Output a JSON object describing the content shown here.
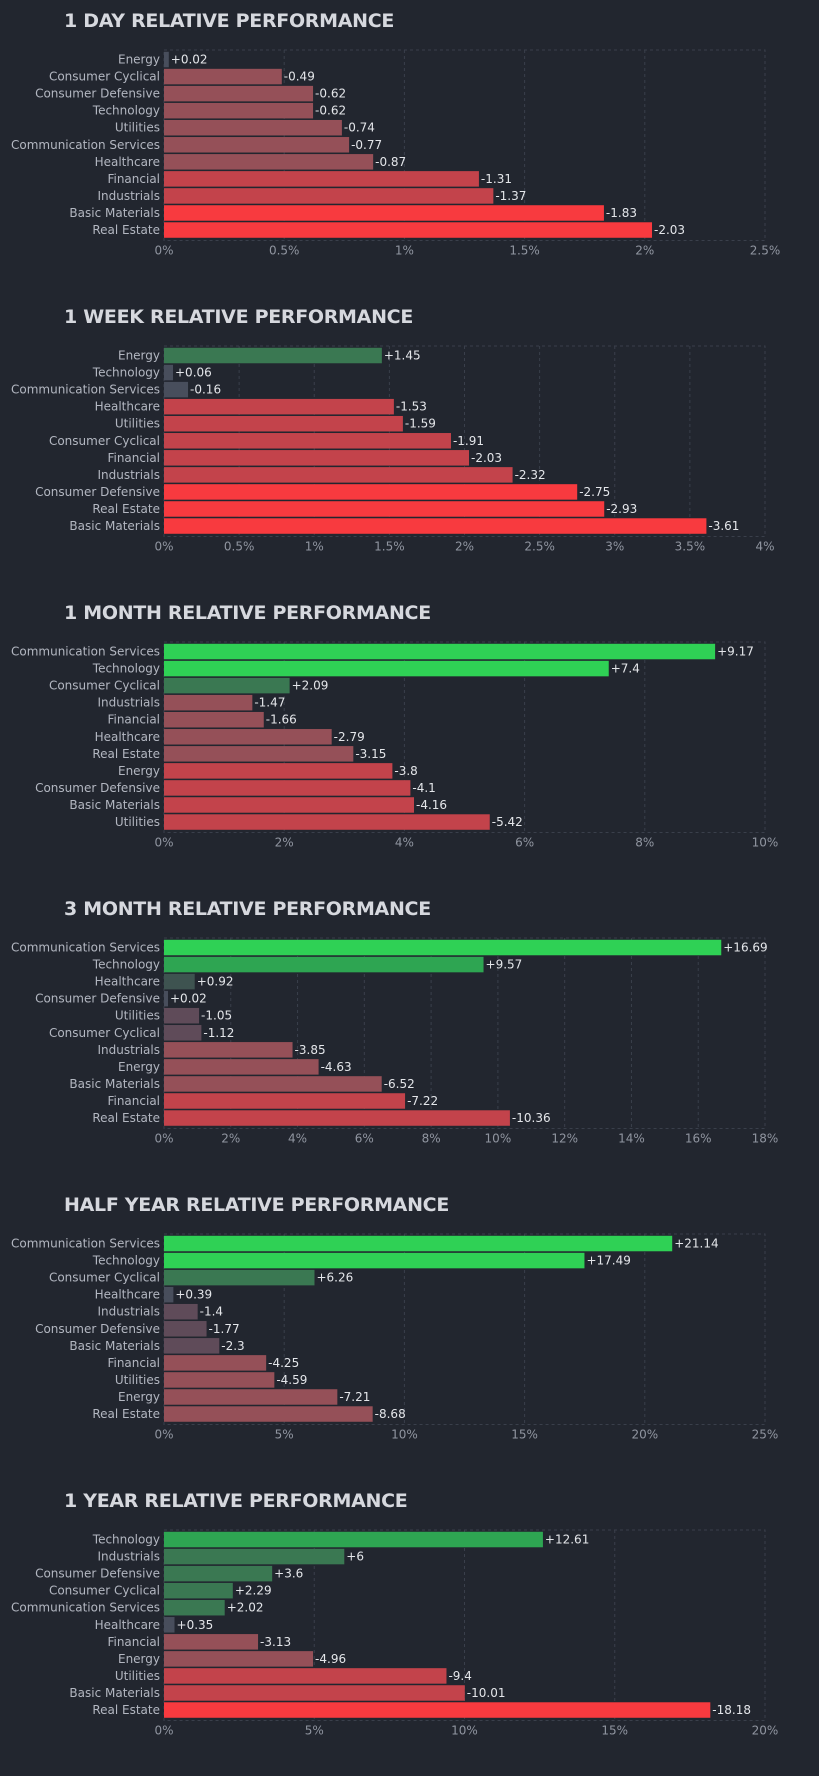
{
  "colors": {
    "background": "#22262f",
    "grid": "#3a3f4b",
    "neg_strong": "#f83a3f",
    "neg_mid": "#c3434b",
    "neg_weak": "#955058",
    "neg_faint": "#5f4b59",
    "neutral": "#484e5c",
    "pos_faint": "#3e5350",
    "pos_weak": "#3a7852",
    "pos_mid": "#2ea552",
    "pos_strong": "#2fd155"
  },
  "chart_data": [
    {
      "type": "bar",
      "title": "1 DAY RELATIVE PERFORMANCE",
      "categories": [
        "Energy",
        "Consumer Cyclical",
        "Consumer Defensive",
        "Technology",
        "Utilities",
        "Communication Services",
        "Healthcare",
        "Financial",
        "Industrials",
        "Basic Materials",
        "Real Estate"
      ],
      "values": [
        0.02,
        -0.49,
        -0.62,
        -0.62,
        -0.74,
        -0.77,
        -0.87,
        -1.31,
        -1.37,
        -1.83,
        -2.03
      ],
      "value_labels": [
        "+0.02",
        "-0.49",
        "-0.62",
        "-0.62",
        "-0.74",
        "-0.77",
        "-0.87",
        "-1.31",
        "-1.37",
        "-1.83",
        "-2.03"
      ],
      "xlim": [
        0,
        2.5
      ],
      "ticks": [
        0,
        0.5,
        1,
        1.5,
        2,
        2.5
      ],
      "tick_labels": [
        "0%",
        "0.5%",
        "1%",
        "1.5%",
        "2%",
        "2.5%"
      ],
      "orientation": "horizontal",
      "grid": true
    },
    {
      "type": "bar",
      "title": "1 WEEK RELATIVE PERFORMANCE",
      "categories": [
        "Energy",
        "Technology",
        "Communication Services",
        "Healthcare",
        "Utilities",
        "Consumer Cyclical",
        "Financial",
        "Industrials",
        "Consumer Defensive",
        "Real Estate",
        "Basic Materials"
      ],
      "values": [
        1.45,
        0.06,
        -0.16,
        -1.53,
        -1.59,
        -1.91,
        -2.03,
        -2.32,
        -2.75,
        -2.93,
        -3.61
      ],
      "value_labels": [
        "+1.45",
        "+0.06",
        "-0.16",
        "-1.53",
        "-1.59",
        "-1.91",
        "-2.03",
        "-2.32",
        "-2.75",
        "-2.93",
        "-3.61"
      ],
      "xlim": [
        0,
        4
      ],
      "ticks": [
        0,
        0.5,
        1,
        1.5,
        2,
        2.5,
        3,
        3.5,
        4
      ],
      "tick_labels": [
        "0%",
        "0.5%",
        "1%",
        "1.5%",
        "2%",
        "2.5%",
        "3%",
        "3.5%",
        "4%"
      ],
      "orientation": "horizontal",
      "grid": true
    },
    {
      "type": "bar",
      "title": "1 MONTH RELATIVE PERFORMANCE",
      "categories": [
        "Communication Services",
        "Technology",
        "Consumer Cyclical",
        "Industrials",
        "Financial",
        "Healthcare",
        "Real Estate",
        "Energy",
        "Consumer Defensive",
        "Basic Materials",
        "Utilities"
      ],
      "values": [
        9.17,
        7.4,
        2.09,
        -1.47,
        -1.66,
        -2.79,
        -3.15,
        -3.8,
        -4.1,
        -4.16,
        -5.42
      ],
      "value_labels": [
        "+9.17",
        "+7.4",
        "+2.09",
        "-1.47",
        "-1.66",
        "-2.79",
        "-3.15",
        "-3.8",
        "-4.1",
        "-4.16",
        "-5.42"
      ],
      "xlim": [
        0,
        10
      ],
      "ticks": [
        0,
        2,
        4,
        6,
        8,
        10
      ],
      "tick_labels": [
        "0%",
        "2%",
        "4%",
        "6%",
        "8%",
        "10%"
      ],
      "orientation": "horizontal",
      "grid": true
    },
    {
      "type": "bar",
      "title": "3 MONTH RELATIVE PERFORMANCE",
      "categories": [
        "Communication Services",
        "Technology",
        "Healthcare",
        "Consumer Defensive",
        "Utilities",
        "Consumer Cyclical",
        "Industrials",
        "Energy",
        "Basic Materials",
        "Financial",
        "Real Estate"
      ],
      "values": [
        16.69,
        9.57,
        0.92,
        0.02,
        -1.05,
        -1.12,
        -3.85,
        -4.63,
        -6.52,
        -7.22,
        -10.36
      ],
      "value_labels": [
        "+16.69",
        "+9.57",
        "+0.92",
        "+0.02",
        "-1.05",
        "-1.12",
        "-3.85",
        "-4.63",
        "-6.52",
        "-7.22",
        "-10.36"
      ],
      "xlim": [
        0,
        18
      ],
      "ticks": [
        0,
        2,
        4,
        6,
        8,
        10,
        12,
        14,
        16,
        18
      ],
      "tick_labels": [
        "0%",
        "2%",
        "4%",
        "6%",
        "8%",
        "10%",
        "12%",
        "14%",
        "16%",
        "18%"
      ],
      "orientation": "horizontal",
      "grid": true
    },
    {
      "type": "bar",
      "title": "HALF YEAR RELATIVE PERFORMANCE",
      "categories": [
        "Communication Services",
        "Technology",
        "Consumer Cyclical",
        "Healthcare",
        "Industrials",
        "Consumer Defensive",
        "Basic Materials",
        "Financial",
        "Utilities",
        "Energy",
        "Real Estate"
      ],
      "values": [
        21.14,
        17.49,
        6.26,
        0.39,
        -1.4,
        -1.77,
        -2.3,
        -4.25,
        -4.59,
        -7.21,
        -8.68
      ],
      "value_labels": [
        "+21.14",
        "+17.49",
        "+6.26",
        "+0.39",
        "-1.4",
        "-1.77",
        "-2.3",
        "-4.25",
        "-4.59",
        "-7.21",
        "-8.68"
      ],
      "xlim": [
        0,
        25
      ],
      "ticks": [
        0,
        5,
        10,
        15,
        20,
        25
      ],
      "tick_labels": [
        "0%",
        "5%",
        "10%",
        "15%",
        "20%",
        "25%"
      ],
      "orientation": "horizontal",
      "grid": true
    },
    {
      "type": "bar",
      "title": "1 YEAR RELATIVE PERFORMANCE",
      "categories": [
        "Technology",
        "Industrials",
        "Consumer Defensive",
        "Consumer Cyclical",
        "Communication Services",
        "Healthcare",
        "Financial",
        "Energy",
        "Utilities",
        "Basic Materials",
        "Real Estate"
      ],
      "values": [
        12.61,
        6,
        3.6,
        2.29,
        2.02,
        0.35,
        -3.13,
        -4.96,
        -9.4,
        -10.01,
        -18.18
      ],
      "value_labels": [
        "+12.61",
        "+6",
        "+3.6",
        "+2.29",
        "+2.02",
        "+0.35",
        "-3.13",
        "-4.96",
        "-9.4",
        "-10.01",
        "-18.18"
      ],
      "xlim": [
        0,
        20
      ],
      "ticks": [
        0,
        5,
        10,
        15,
        20
      ],
      "tick_labels": [
        "0%",
        "5%",
        "10%",
        "15%",
        "20%"
      ],
      "orientation": "horizontal",
      "grid": true
    }
  ]
}
